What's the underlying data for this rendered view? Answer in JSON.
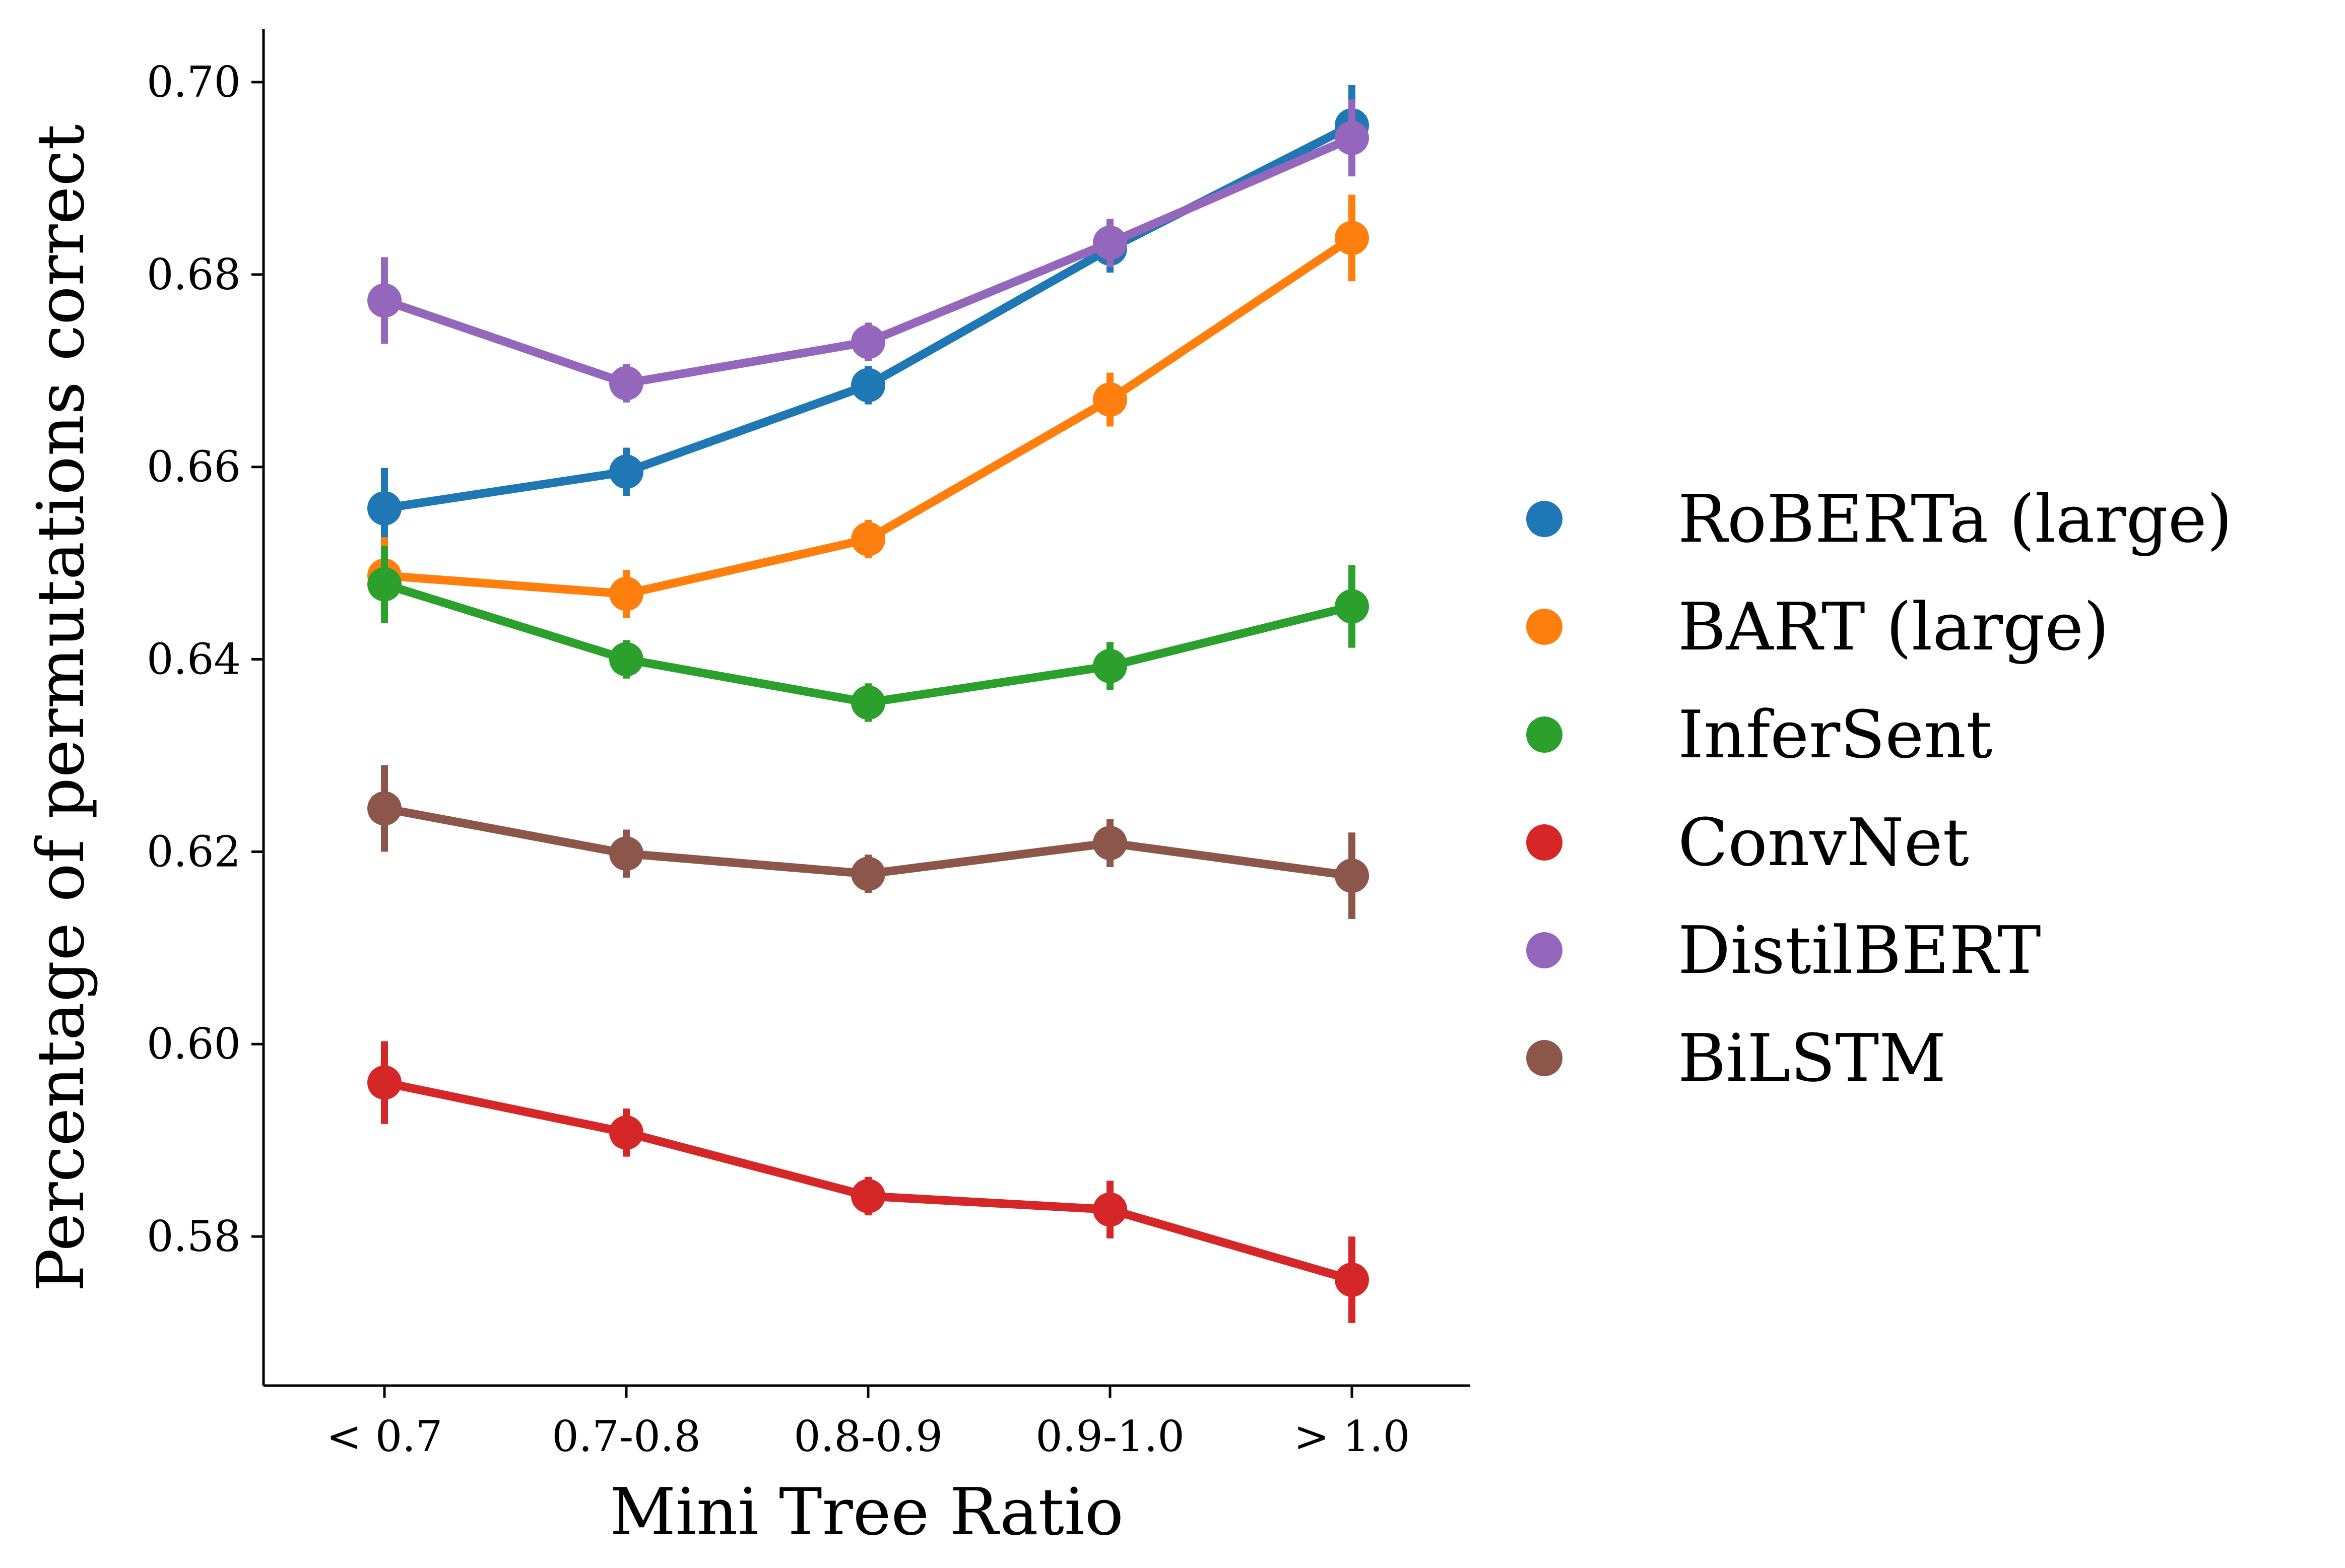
{
  "chart_data": {
    "type": "line",
    "xlabel": "Mini Tree Ratio",
    "ylabel": "Percentage of permutations correct",
    "categories": [
      "< 0.7",
      "0.7-0.8",
      "0.8-0.9",
      "0.9-1.0",
      "> 1.0"
    ],
    "ylim": [
      0.5645,
      0.7055
    ],
    "yticks": [
      "0.58",
      "0.60",
      "0.62",
      "0.64",
      "0.66",
      "0.68",
      "0.70"
    ],
    "grid": false,
    "legend_position": "right",
    "series": [
      {
        "name": "RoBERTa (large)",
        "color": "#1f77b4",
        "values": [
          0.6557,
          0.6595,
          0.6685,
          0.6827,
          0.6955
        ],
        "err": [
          0.0042,
          0.0025,
          0.002,
          0.0025,
          0.0042
        ]
      },
      {
        "name": "BART (large)",
        "color": "#ff7f0e",
        "values": [
          0.6487,
          0.6468,
          0.6525,
          0.667,
          0.6838
        ],
        "err": [
          0.004,
          0.0025,
          0.002,
          0.0028,
          0.0045
        ]
      },
      {
        "name": "InferSent",
        "color": "#2ca02c",
        "values": [
          0.6478,
          0.64,
          0.6355,
          0.6393,
          0.6455
        ],
        "err": [
          0.004,
          0.002,
          0.002,
          0.0025,
          0.0043
        ]
      },
      {
        "name": "ConvNet",
        "color": "#d62728",
        "values": [
          0.596,
          0.5908,
          0.5842,
          0.5828,
          0.5755
        ],
        "err": [
          0.0043,
          0.0025,
          0.002,
          0.003,
          0.0045
        ]
      },
      {
        "name": "DistilBERT",
        "color": "#9467bd",
        "values": [
          0.6773,
          0.6687,
          0.673,
          0.6833,
          0.6942
        ],
        "err": [
          0.0045,
          0.002,
          0.002,
          0.0025,
          0.004
        ]
      },
      {
        "name": "BiLSTM",
        "color": "#8c564b",
        "values": [
          0.6245,
          0.6198,
          0.6177,
          0.6209,
          0.6175
        ],
        "err": [
          0.0045,
          0.0025,
          0.002,
          0.0025,
          0.0045
        ]
      }
    ]
  }
}
